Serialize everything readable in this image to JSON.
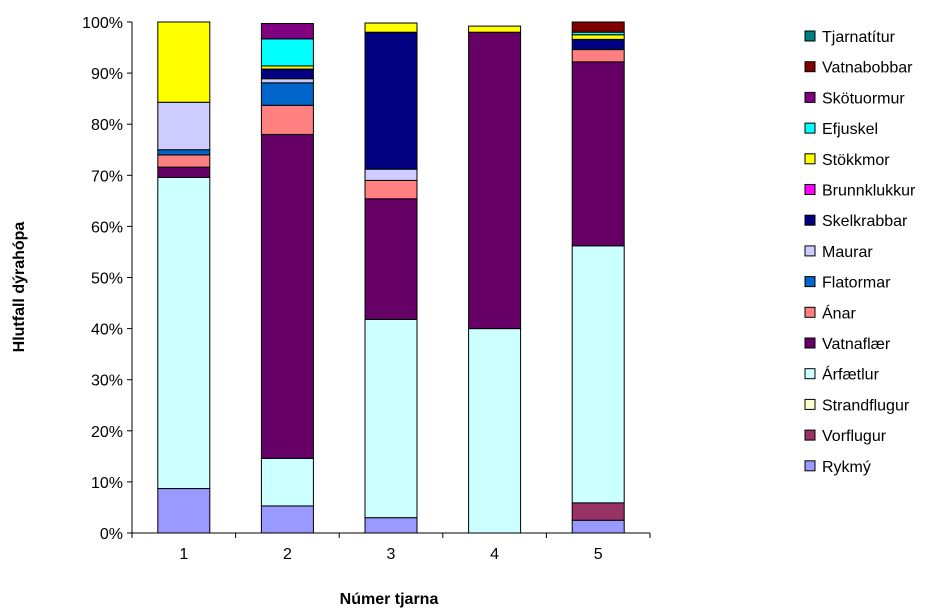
{
  "chart_data": {
    "type": "bar",
    "stacked": true,
    "percent_stacked": true,
    "xlabel": "Númer tjarna",
    "ylabel": "Hlutfall dýrahópa",
    "categories": [
      "1",
      "2",
      "3",
      "4",
      "5"
    ],
    "ylim": [
      0,
      100
    ],
    "yticks": [
      "0%",
      "10%",
      "20%",
      "30%",
      "40%",
      "50%",
      "60%",
      "70%",
      "80%",
      "90%",
      "100%"
    ],
    "grid": false,
    "legend_position": "right",
    "series": [
      {
        "name": "Rykmý",
        "color": "#9999FF",
        "values": [
          8.7,
          5.3,
          3.0,
          0.0,
          2.5
        ]
      },
      {
        "name": "Vorflugur",
        "color": "#993366",
        "values": [
          0.0,
          0.0,
          0.0,
          0.0,
          3.4
        ]
      },
      {
        "name": "Strandflugur",
        "color": "#FFFFCC",
        "values": [
          0.0,
          0.0,
          0.0,
          0.0,
          0.0
        ]
      },
      {
        "name": "Árfætlur",
        "color": "#CCFFFF",
        "values": [
          60.9,
          9.3,
          38.8,
          40.0,
          50.3
        ]
      },
      {
        "name": "Vatnaflær",
        "color": "#660066",
        "values": [
          2.0,
          63.4,
          23.6,
          58.0,
          36.0
        ]
      },
      {
        "name": "Ánar",
        "color": "#FF8080",
        "values": [
          2.4,
          5.7,
          3.6,
          0.0,
          2.4
        ]
      },
      {
        "name": "Flatormar",
        "color": "#0066CC",
        "values": [
          1.0,
          4.4,
          0.0,
          0.0,
          0.0
        ]
      },
      {
        "name": "Maurar",
        "color": "#CCCCFF",
        "values": [
          9.3,
          0.8,
          2.2,
          0.0,
          0.0
        ]
      },
      {
        "name": "Skelkrabbar",
        "color": "#000080",
        "values": [
          0.0,
          1.9,
          26.8,
          0.0,
          2.0
        ]
      },
      {
        "name": "Brunnklukkur",
        "color": "#FF00FF",
        "values": [
          0.0,
          0.0,
          0.0,
          0.0,
          0.0
        ]
      },
      {
        "name": "Stökkmor",
        "color": "#FFFF00",
        "values": [
          15.7,
          0.6,
          1.8,
          1.2,
          0.9
        ]
      },
      {
        "name": "Efjuskel",
        "color": "#00FFFF",
        "values": [
          0.0,
          5.3,
          0.0,
          0.0,
          0.5
        ]
      },
      {
        "name": "Skötuormur",
        "color": "#800080",
        "values": [
          0.0,
          3.0,
          0.0,
          0.0,
          0.0
        ]
      },
      {
        "name": "Vatnabobbar",
        "color": "#800000",
        "values": [
          0.0,
          0.0,
          0.0,
          0.0,
          2.0
        ]
      },
      {
        "name": "Tjarnatítur",
        "color": "#008080",
        "values": [
          0.0,
          0.0,
          0.0,
          0.0,
          0.0
        ]
      }
    ]
  }
}
